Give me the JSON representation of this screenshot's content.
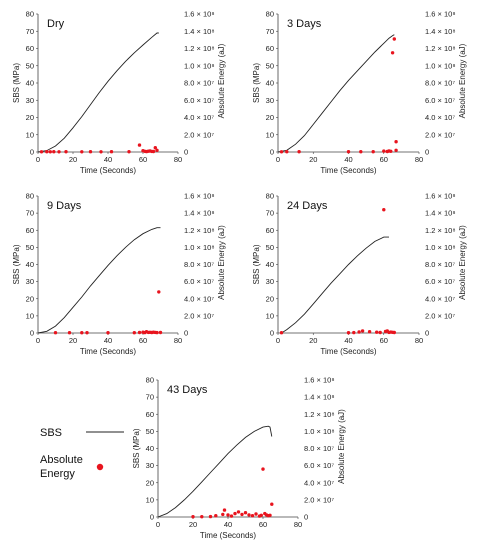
{
  "chart_data": [
    {
      "type": "line",
      "title": "Dry",
      "xlabel": "Time (Seconds)",
      "ylabel": "SBS (MPa)",
      "y2label": "Absolute Energy (aJ)",
      "xlim": [
        0,
        80
      ],
      "ylim": [
        0,
        80
      ],
      "y2lim": [
        0,
        160000000
      ],
      "xticks": [
        "0",
        "20",
        "40",
        "60",
        "80"
      ],
      "yticks": [
        "0",
        "10",
        "20",
        "30",
        "40",
        "50",
        "60",
        "70",
        "80"
      ],
      "y2ticks": [
        "0",
        "2.0 × 10⁷",
        "4.0 × 10⁷",
        "6.0 × 10⁷",
        "8.0 × 10⁷",
        "1.0 × 10⁸",
        "1.2 × 10⁸",
        "1.4 × 10⁸",
        "1.6 × 10⁸"
      ],
      "series": [
        {
          "name": "SBS",
          "kind": "line",
          "color": "#222222",
          "x": [
            0,
            5,
            10,
            15,
            20,
            25,
            30,
            35,
            40,
            45,
            50,
            55,
            60,
            65,
            68,
            69
          ],
          "y": [
            0,
            0.8,
            3.5,
            8,
            14,
            20.5,
            27.5,
            34.5,
            41,
            47,
            52.5,
            57.5,
            62,
            66.5,
            69,
            69
          ]
        },
        {
          "name": "Absolute Energy",
          "kind": "scatter",
          "color": "#e8141e",
          "x": [
            2,
            5,
            7,
            9,
            12,
            16,
            25,
            30,
            36,
            42,
            52,
            58,
            60,
            61,
            62,
            63,
            64,
            65,
            66,
            67,
            68
          ],
          "y": [
            200000,
            300000,
            200000,
            300000,
            200000,
            300000,
            200000,
            300000,
            200000,
            300000,
            400000,
            8000000,
            1500000,
            800000,
            500000,
            900000,
            1200000,
            700000,
            600000,
            5000000,
            2000000
          ]
        }
      ]
    },
    {
      "type": "line",
      "title": "3 Days",
      "xlabel": "Time (Seconds)",
      "ylabel": "SBS (MPa)",
      "y2label": "Absolute Energy (aJ)",
      "xlim": [
        0,
        80
      ],
      "ylim": [
        0,
        80
      ],
      "y2lim": [
        0,
        160000000
      ],
      "xticks": [
        "0",
        "20",
        "40",
        "60",
        "80"
      ],
      "yticks": [
        "0",
        "10",
        "20",
        "30",
        "40",
        "50",
        "60",
        "70",
        "80"
      ],
      "y2ticks": [
        "0",
        "2.0 × 10⁷",
        "4.0 × 10⁷",
        "6.0 × 10⁷",
        "8.0 × 10⁷",
        "1.0 × 10⁸",
        "1.2 × 10⁸",
        "1.4 × 10⁸",
        "1.6 × 10⁸"
      ],
      "series": [
        {
          "name": "SBS",
          "kind": "line",
          "color": "#222222",
          "x": [
            0,
            5,
            10,
            15,
            20,
            25,
            30,
            35,
            40,
            45,
            50,
            55,
            60,
            63,
            65,
            66
          ],
          "y": [
            0,
            1,
            4.5,
            9.5,
            16,
            22.5,
            29,
            35.5,
            41.5,
            47,
            52.5,
            58,
            63,
            66,
            67.5,
            68
          ]
        },
        {
          "name": "Absolute Energy",
          "kind": "scatter",
          "color": "#e8141e",
          "x": [
            2,
            5,
            12,
            40,
            47,
            54,
            60,
            62,
            63,
            64,
            65,
            66,
            67,
            67
          ],
          "y": [
            200000,
            300000,
            300000,
            400000,
            300000,
            400000,
            1000000,
            600000,
            1200000,
            800000,
            115000000,
            131000000,
            12000000,
            2000000
          ]
        }
      ]
    },
    {
      "type": "line",
      "title": "9 Days",
      "xlabel": "Time (Seconds)",
      "ylabel": "SBS (MPa)",
      "y2label": "Absolute Energy (aJ)",
      "xlim": [
        0,
        80
      ],
      "ylim": [
        0,
        80
      ],
      "y2lim": [
        0,
        160000000
      ],
      "xticks": [
        "0",
        "20",
        "40",
        "60",
        "80"
      ],
      "yticks": [
        "0",
        "10",
        "20",
        "30",
        "40",
        "50",
        "60",
        "70",
        "80"
      ],
      "y2ticks": [
        "0",
        "2.0 × 10⁷",
        "4.0 × 10⁷",
        "6.0 × 10⁷",
        "8.0 × 10⁷",
        "1.0 × 10⁸",
        "1.2 × 10⁸",
        "1.4 × 10⁸",
        "1.6 × 10⁸"
      ],
      "series": [
        {
          "name": "SBS",
          "kind": "line",
          "color": "#222222",
          "x": [
            0,
            5,
            10,
            15,
            20,
            25,
            30,
            35,
            40,
            45,
            50,
            55,
            60,
            65,
            68,
            70
          ],
          "y": [
            0,
            1,
            4,
            9,
            15,
            21,
            27.5,
            33.5,
            39.5,
            45,
            50,
            54.5,
            58,
            60.5,
            61.5,
            61.5
          ]
        },
        {
          "name": "Absolute Energy",
          "kind": "scatter",
          "color": "#e8141e",
          "x": [
            10,
            18,
            25,
            28,
            40,
            55,
            58,
            60,
            61,
            62,
            63,
            64,
            65,
            66,
            67,
            68,
            69,
            70
          ],
          "y": [
            300000,
            400000,
            300000,
            400000,
            300000,
            400000,
            600000,
            900000,
            500000,
            1500000,
            700000,
            800000,
            600000,
            900000,
            700000,
            500000,
            48000000,
            600000
          ]
        }
      ]
    },
    {
      "type": "line",
      "title": "24 Days",
      "xlabel": "Time (Seconds)",
      "ylabel": "SBS (MPa)",
      "y2label": "Absolute Energy (aJ)",
      "xlim": [
        0,
        80
      ],
      "ylim": [
        0,
        80
      ],
      "y2lim": [
        0,
        160000000
      ],
      "xticks": [
        "0",
        "20",
        "40",
        "60",
        "80"
      ],
      "yticks": [
        "0",
        "10",
        "20",
        "30",
        "40",
        "50",
        "60",
        "70",
        "80"
      ],
      "y2ticks": [
        "0",
        "2.0 × 10⁷",
        "4.0 × 10⁷",
        "6.0 × 10⁷",
        "8.0 × 10⁷",
        "1.0 × 10⁸",
        "1.2 × 10⁸",
        "1.4 × 10⁸",
        "1.6 × 10⁸"
      ],
      "series": [
        {
          "name": "SBS",
          "kind": "line",
          "color": "#222222",
          "x": [
            2,
            5,
            10,
            15,
            20,
            25,
            30,
            35,
            40,
            45,
            50,
            55,
            60,
            63
          ],
          "y": [
            0,
            2,
            6,
            11,
            17,
            23,
            29,
            34.5,
            40,
            45,
            49.5,
            53.5,
            56,
            56
          ]
        },
        {
          "name": "Absolute Energy",
          "kind": "scatter",
          "color": "#e8141e",
          "x": [
            2,
            40,
            43,
            46,
            48,
            52,
            56,
            58,
            60,
            61,
            62,
            63,
            64,
            65,
            66
          ],
          "y": [
            300000,
            400000,
            500000,
            1200000,
            2500000,
            1500000,
            900000,
            600000,
            144000000,
            1800000,
            2500000,
            700000,
            1000000,
            800000,
            600000
          ]
        }
      ]
    },
    {
      "type": "line",
      "title": "43 Days",
      "xlabel": "Time (Seconds)",
      "ylabel": "SBS (MPa)",
      "y2label": "Absolute Energy (aJ)",
      "xlim": [
        0,
        80
      ],
      "ylim": [
        0,
        80
      ],
      "y2lim": [
        0,
        160000000
      ],
      "xticks": [
        "0",
        "20",
        "40",
        "60",
        "80"
      ],
      "yticks": [
        "0",
        "10",
        "20",
        "30",
        "40",
        "50",
        "60",
        "70",
        "80"
      ],
      "y2ticks": [
        "0",
        "2.0 × 10⁷",
        "4.0 × 10⁷",
        "6.0 × 10⁷",
        "8.0 × 10⁷",
        "1.0 × 10⁸",
        "1.2 × 10⁸",
        "1.4 × 10⁸",
        "1.6 × 10⁸"
      ],
      "series": [
        {
          "name": "SBS",
          "kind": "line",
          "color": "#222222",
          "x": [
            0,
            5,
            10,
            15,
            20,
            25,
            30,
            35,
            40,
            45,
            50,
            55,
            60,
            63,
            64,
            65
          ],
          "y": [
            0,
            2,
            5.5,
            10,
            15,
            20.5,
            26,
            31.5,
            37,
            42,
            46.5,
            50,
            52.5,
            53,
            52.5,
            47
          ]
        },
        {
          "name": "Absolute Energy",
          "kind": "scatter",
          "color": "#e8141e",
          "x": [
            20,
            25,
            30,
            33,
            37,
            38,
            40,
            42,
            44,
            46,
            48,
            50,
            52,
            54,
            56,
            58,
            59,
            60,
            61,
            62,
            63,
            64,
            65
          ],
          "y": [
            300000,
            400000,
            500000,
            1500000,
            3000000,
            8000000,
            2500000,
            1000000,
            4000000,
            6000000,
            3000000,
            5000000,
            2500000,
            1500000,
            3500000,
            1000000,
            2000000,
            56000000,
            4000000,
            2500000,
            1500000,
            2000000,
            15000000
          ]
        }
      ]
    }
  ],
  "legend": {
    "line_label": "SBS",
    "marker_label_line1": "Absolute",
    "marker_label_line2": "Energy"
  }
}
